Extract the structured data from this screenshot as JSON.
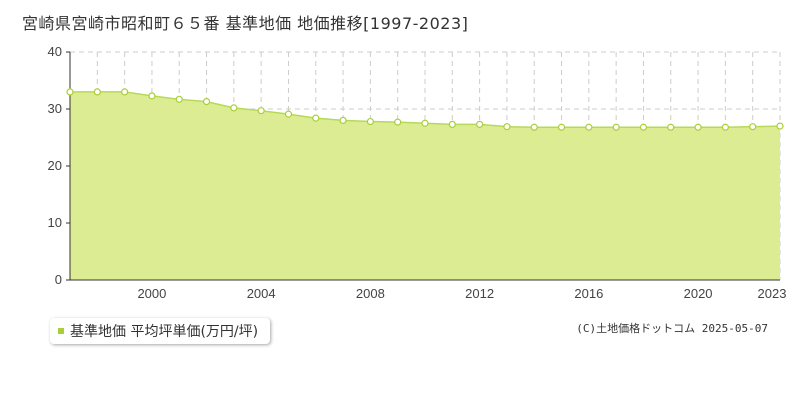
{
  "title": "宮崎県宮崎市昭和町６５番 基準地価 地価推移[1997-2023]",
  "legend": {
    "label": "基準地価 平均坪単価(万円/坪)"
  },
  "copyright": "(C)土地価格ドットコム 2025-05-07",
  "colors": {
    "fill": "#dcec93",
    "line": "#b8d85a",
    "marker_stroke": "#a9cf38",
    "marker_fill": "#ffffff",
    "grid": "#cccccc",
    "axis": "#333333"
  },
  "chart_data": {
    "type": "area",
    "title": "宮崎県宮崎市昭和町６５番 基準地価 地価推移[1997-2023]",
    "xlabel": "",
    "ylabel": "",
    "x": [
      1997,
      1998,
      1999,
      2000,
      2001,
      2002,
      2003,
      2004,
      2005,
      2006,
      2007,
      2008,
      2009,
      2010,
      2011,
      2012,
      2013,
      2014,
      2015,
      2016,
      2017,
      2018,
      2019,
      2020,
      2021,
      2022,
      2023
    ],
    "xlim": [
      1997,
      2023
    ],
    "xticks": [
      2000,
      2004,
      2008,
      2012,
      2016,
      2020,
      2023
    ],
    "ylim": [
      0,
      40
    ],
    "yticks": [
      0,
      10,
      20,
      30,
      40
    ],
    "grid": true,
    "legend_position": "bottom-left",
    "series": [
      {
        "name": "基準地価 平均坪単価(万円/坪)",
        "values": [
          33.0,
          33.0,
          33.0,
          32.3,
          31.7,
          31.3,
          30.2,
          29.7,
          29.1,
          28.4,
          28.0,
          27.8,
          27.7,
          27.5,
          27.3,
          27.3,
          26.9,
          26.8,
          26.8,
          26.8,
          26.8,
          26.8,
          26.8,
          26.8,
          26.8,
          26.9,
          27.0
        ]
      }
    ]
  }
}
